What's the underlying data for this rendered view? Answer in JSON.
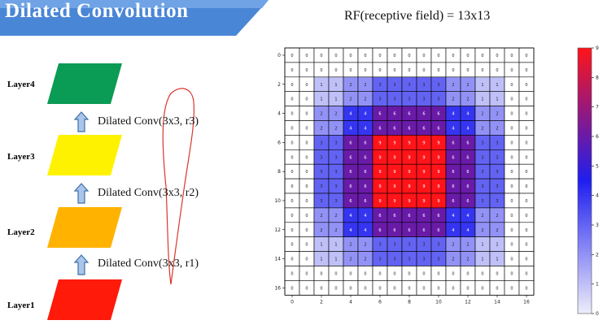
{
  "header": {
    "title": "Dilated Convolution",
    "rf_title": "RF(receptive field) = 13x13"
  },
  "layers": [
    {
      "label": "Layer4",
      "color": "#0a9b55"
    },
    {
      "label": "Layer3",
      "color": "#fff200"
    },
    {
      "label": "Layer2",
      "color": "#ffb300"
    },
    {
      "label": "Layer1",
      "color": "#ff1a0a"
    }
  ],
  "operations": [
    "Dilated Conv(3x3, r3)",
    "Dilated Conv(3x3, r2)",
    "Dilated Conv(3x3, r1)"
  ],
  "chart_data": {
    "type": "heatmap",
    "title": "",
    "xticks": [
      "0",
      "2",
      "4",
      "6",
      "8",
      "10",
      "12",
      "14",
      "16"
    ],
    "yticks": [
      "0",
      "2",
      "4",
      "6",
      "8",
      "10",
      "12",
      "14",
      "16"
    ],
    "colorbar_ticks": [
      "0",
      "1",
      "2",
      "3",
      "4",
      "5",
      "6",
      "7",
      "8",
      "9"
    ],
    "vmin": 0,
    "vmax": 9,
    "colormap": "bwr",
    "values": [
      [
        0,
        0,
        0,
        0,
        0,
        0,
        0,
        0,
        0,
        0,
        0,
        0,
        0,
        0,
        0,
        0,
        0
      ],
      [
        0,
        0,
        0,
        0,
        0,
        0,
        0,
        0,
        0,
        0,
        0,
        0,
        0,
        0,
        0,
        0,
        0
      ],
      [
        0,
        0,
        1,
        1,
        2,
        2,
        3,
        3,
        3,
        3,
        3,
        2,
        2,
        1,
        1,
        0,
        0
      ],
      [
        0,
        0,
        1,
        1,
        2,
        2,
        3,
        3,
        3,
        3,
        3,
        2,
        2,
        1,
        1,
        0,
        0
      ],
      [
        0,
        0,
        2,
        2,
        4,
        4,
        6,
        6,
        6,
        6,
        6,
        4,
        4,
        2,
        2,
        0,
        0
      ],
      [
        0,
        0,
        2,
        2,
        4,
        4,
        6,
        6,
        6,
        6,
        6,
        4,
        4,
        2,
        2,
        0,
        0
      ],
      [
        0,
        0,
        3,
        3,
        6,
        6,
        9,
        9,
        9,
        9,
        9,
        6,
        6,
        3,
        3,
        0,
        0
      ],
      [
        0,
        0,
        3,
        3,
        6,
        6,
        9,
        9,
        9,
        9,
        9,
        6,
        6,
        3,
        3,
        0,
        0
      ],
      [
        0,
        0,
        3,
        3,
        6,
        6,
        9,
        9,
        9,
        9,
        9,
        6,
        6,
        3,
        3,
        0,
        0
      ],
      [
        0,
        0,
        3,
        3,
        6,
        6,
        9,
        9,
        9,
        9,
        9,
        6,
        6,
        3,
        3,
        0,
        0
      ],
      [
        0,
        0,
        3,
        3,
        6,
        6,
        9,
        9,
        9,
        9,
        9,
        6,
        6,
        3,
        3,
        0,
        0
      ],
      [
        0,
        0,
        2,
        2,
        4,
        4,
        6,
        6,
        6,
        6,
        6,
        4,
        4,
        2,
        2,
        0,
        0
      ],
      [
        0,
        0,
        2,
        2,
        4,
        4,
        6,
        6,
        6,
        6,
        6,
        4,
        4,
        2,
        2,
        0,
        0
      ],
      [
        0,
        0,
        1,
        1,
        2,
        2,
        3,
        3,
        3,
        3,
        3,
        2,
        2,
        1,
        1,
        0,
        0
      ],
      [
        0,
        0,
        1,
        1,
        2,
        2,
        3,
        3,
        3,
        3,
        3,
        2,
        2,
        1,
        1,
        0,
        0
      ],
      [
        0,
        0,
        0,
        0,
        0,
        0,
        0,
        0,
        0,
        0,
        0,
        0,
        0,
        0,
        0,
        0,
        0
      ],
      [
        0,
        0,
        0,
        0,
        0,
        0,
        0,
        0,
        0,
        0,
        0,
        0,
        0,
        0,
        0,
        0,
        0
      ]
    ]
  }
}
